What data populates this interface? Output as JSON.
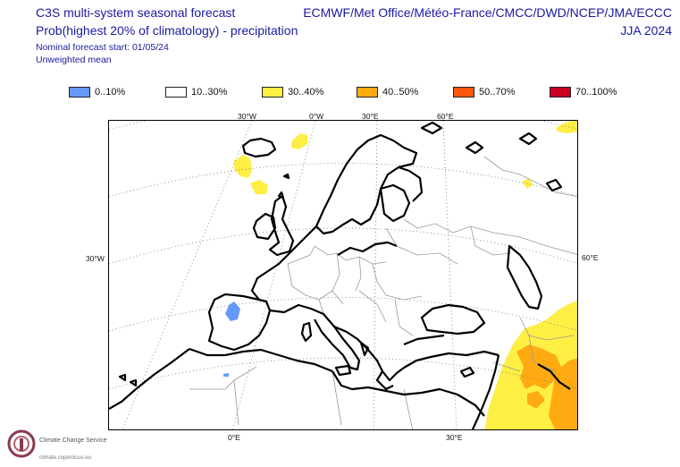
{
  "header": {
    "title_line1": "C3S multi-system seasonal forecast",
    "title_line2": "Prob(highest 20% of climatology) - precipitation",
    "title_line3": "Nominal forecast start: 01/05/24",
    "title_line4": "Unweighted mean",
    "models": "ECMWF/Met Office/Météo-France/CMCC/DWD/NCEP/JMA/ECCC",
    "season": "JJA 2024"
  },
  "legend": [
    {
      "label": "0..10%",
      "color": "#6699ff"
    },
    {
      "label": "10..30%",
      "color": "#ffffff"
    },
    {
      "label": "30..40%",
      "color": "#ffee44"
    },
    {
      "label": "40..50%",
      "color": "#ffaa11"
    },
    {
      "label": "50..70%",
      "color": "#ff5511"
    },
    {
      "label": "70..100%",
      "color": "#cc0022"
    }
  ],
  "map_labels": {
    "top": [
      "30°W",
      "0°W",
      "30°E",
      "60°E"
    ],
    "left": "30°W",
    "right": "60°E",
    "bottom": [
      "0°E",
      "30°E"
    ]
  },
  "colors": {
    "dry": "#6699ff",
    "wet_30_40": "#ffee44",
    "wet_40_50": "#ffaa11"
  },
  "logo": {
    "name": "Climate Change Service",
    "url": "climate.copernicus.eu",
    "icon": "copernicus-logo-icon"
  }
}
